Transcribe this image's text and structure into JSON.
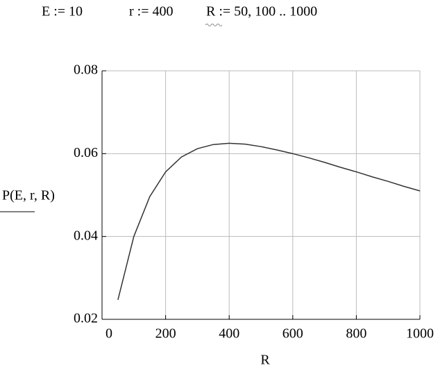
{
  "definitions": [
    "E := 10",
    "r := 400",
    "R := 50, 100 .. 1000"
  ],
  "chart_data": {
    "type": "line",
    "x_label": "R",
    "y_label": "P(E, r, R)",
    "x": [
      50,
      100,
      150,
      200,
      250,
      300,
      350,
      400,
      450,
      500,
      550,
      600,
      650,
      700,
      750,
      800,
      850,
      900,
      950,
      1000
    ],
    "series": [
      {
        "color": "#333333",
        "values": [
          0.0247,
          0.04,
          0.0496,
          0.0556,
          0.0592,
          0.0612,
          0.0622,
          0.0625,
          0.0623,
          0.0617,
          0.0609,
          0.06,
          0.059,
          0.0579,
          0.0567,
          0.0556,
          0.0544,
          0.0533,
          0.0521,
          0.051
        ]
      }
    ],
    "xlim": [
      0,
      1000
    ],
    "xticks": [
      0,
      200,
      400,
      600,
      800,
      1000
    ],
    "ylim": [
      0.02,
      0.08
    ],
    "yticks": [
      0.02,
      0.04,
      0.06,
      0.08
    ],
    "grid": true
  }
}
